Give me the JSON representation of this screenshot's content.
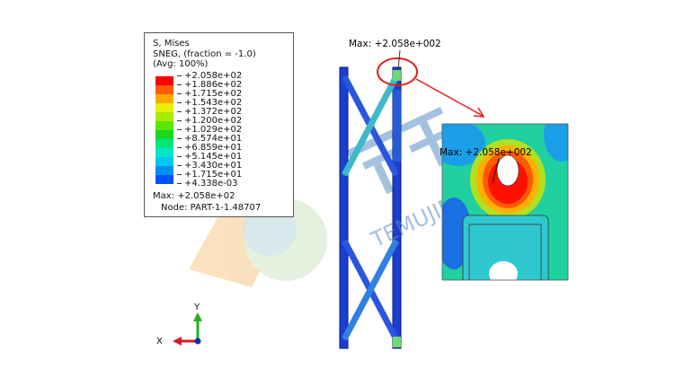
{
  "legend": {
    "title": "S, Mises",
    "subtitle": "SNEG, (fraction = -1.0)",
    "averaging": "(Avg: 100%)",
    "values": [
      "+2.058e+02",
      "+1.886e+02",
      "+1.715e+02",
      "+1.543e+02",
      "+1.372e+02",
      "+1.200e+02",
      "+1.029e+02",
      "+8.574e+01",
      "+6.859e+01",
      "+5.145e+01",
      "+3.430e+01",
      "+1.715e+01",
      "+4.338e-03"
    ],
    "colors": [
      "#ff0000",
      "#ff5a00",
      "#ffa800",
      "#e6f000",
      "#a8ea00",
      "#5ae600",
      "#16d81c",
      "#00e67a",
      "#00e8c8",
      "#00c8f0",
      "#0090f0",
      "#0050ff",
      "#0000f0"
    ],
    "max_text": "Max: +2.058e+02",
    "node_text": "Node: PART-1-1.48707"
  },
  "model": {
    "max_label": "Max: +2.058e+002",
    "inset_max_label": "Max: +2.058e+002",
    "highlight_color": "#e02020"
  },
  "triad": {
    "x_label": "X",
    "y_label": "Y"
  },
  "watermark": {
    "text": "TEMUJIN"
  }
}
